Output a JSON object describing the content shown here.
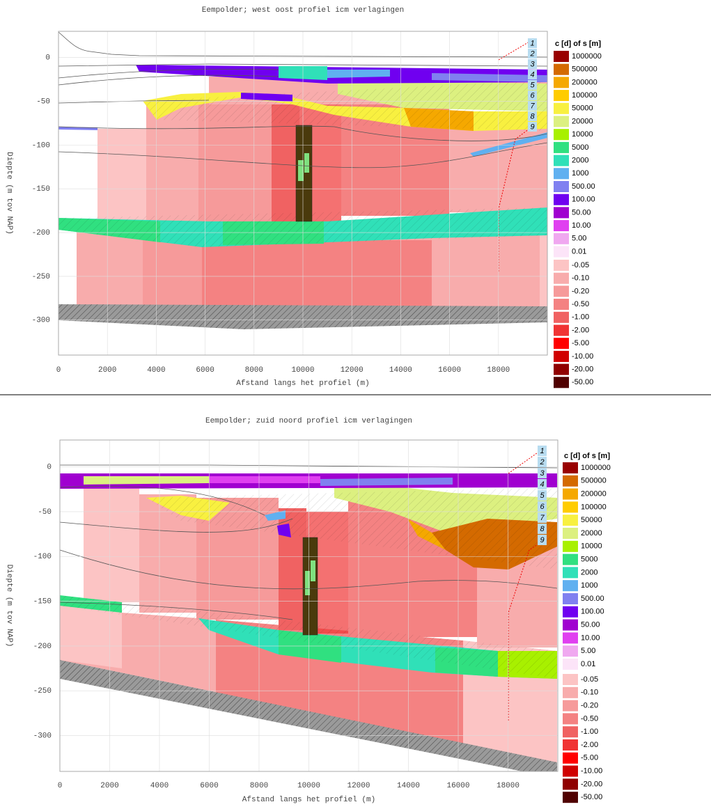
{
  "chart_data": [
    {
      "type": "cross-section",
      "title": "Eempolder; west oost profiel icm verlagingen",
      "xlabel": "Afstand langs het profiel (m)",
      "ylabel": "Diepte (m tov NAP)",
      "xlim": [
        0,
        20000
      ],
      "ylim": [
        -340,
        30
      ],
      "xticks": [
        0,
        2000,
        4000,
        6000,
        8000,
        10000,
        12000,
        14000,
        16000,
        18000
      ],
      "yticks": [
        0,
        -50,
        -100,
        -150,
        -200,
        -250,
        -300
      ],
      "grid": true,
      "layer_labels": [
        "1",
        "2",
        "3",
        "4",
        "5",
        "6",
        "7",
        "8",
        "9"
      ],
      "legend_title": "c [d] of s [m]",
      "legend": [
        {
          "label": "1000000",
          "color": "#990000"
        },
        {
          "label": "500000",
          "color": "#d46a00"
        },
        {
          "label": "200000",
          "color": "#f5a800"
        },
        {
          "label": "100000",
          "color": "#ffcc00"
        },
        {
          "label": "50000",
          "color": "#f8f040"
        },
        {
          "label": "20000",
          "color": "#dcf080"
        },
        {
          "label": "10000",
          "color": "#a8f000"
        },
        {
          "label": "5000",
          "color": "#30e080"
        },
        {
          "label": "2000",
          "color": "#30e0b8"
        },
        {
          "label": "1000",
          "color": "#60b0f0"
        },
        {
          "label": "500.00",
          "color": "#8080f0"
        },
        {
          "label": "100.00",
          "color": "#7000f0"
        },
        {
          "label": "50.00",
          "color": "#a000d0"
        },
        {
          "label": "10.00",
          "color": "#e040f0"
        },
        {
          "label": "5.00",
          "color": "#f0a8f0"
        },
        {
          "label": "0.01",
          "color": "#fce4f8"
        }
      ],
      "legend2": [
        {
          "label": "-0.05",
          "color": "#fcc4c4"
        },
        {
          "label": "-0.10",
          "color": "#f8acac"
        },
        {
          "label": "-0.20",
          "color": "#f69a9a"
        },
        {
          "label": "-0.50",
          "color": "#f48282"
        },
        {
          "label": "-1.00",
          "color": "#f06262"
        },
        {
          "label": "-2.00",
          "color": "#f03434"
        },
        {
          "label": "-5.00",
          "color": "#ff0000"
        },
        {
          "label": "-10.00",
          "color": "#d00000"
        },
        {
          "label": "-20.00",
          "color": "#900000"
        },
        {
          "label": "-50.00",
          "color": "#500000"
        }
      ]
    },
    {
      "type": "cross-section",
      "title": "Eempolder; zuid noord profiel icm verlagingen",
      "xlabel": "Afstand langs het profiel (m)",
      "ylabel": "Diepte (m tov NAP)",
      "xlim": [
        0,
        20000
      ],
      "ylim": [
        -340,
        30
      ],
      "xticks": [
        0,
        2000,
        4000,
        6000,
        8000,
        10000,
        12000,
        14000,
        16000,
        18000
      ],
      "yticks": [
        0,
        -50,
        -100,
        -150,
        -200,
        -250,
        -300
      ],
      "grid": true,
      "layer_labels": [
        "1",
        "2",
        "3",
        "4",
        "5",
        "6",
        "7",
        "8",
        "9"
      ],
      "legend_title": "c [d] of s [m]",
      "legend": [
        {
          "label": "1000000",
          "color": "#990000"
        },
        {
          "label": "500000",
          "color": "#d46a00"
        },
        {
          "label": "200000",
          "color": "#f5a800"
        },
        {
          "label": "100000",
          "color": "#ffcc00"
        },
        {
          "label": "50000",
          "color": "#f8f040"
        },
        {
          "label": "20000",
          "color": "#dcf080"
        },
        {
          "label": "10000",
          "color": "#a8f000"
        },
        {
          "label": "5000",
          "color": "#30e080"
        },
        {
          "label": "2000",
          "color": "#30e0b8"
        },
        {
          "label": "1000",
          "color": "#60b0f0"
        },
        {
          "label": "500.00",
          "color": "#8080f0"
        },
        {
          "label": "100.00",
          "color": "#7000f0"
        },
        {
          "label": "50.00",
          "color": "#a000d0"
        },
        {
          "label": "10.00",
          "color": "#e040f0"
        },
        {
          "label": "5.00",
          "color": "#f0a8f0"
        },
        {
          "label": "0.01",
          "color": "#fce4f8"
        }
      ],
      "legend2": [
        {
          "label": "-0.05",
          "color": "#fcc4c4"
        },
        {
          "label": "-0.10",
          "color": "#f8acac"
        },
        {
          "label": "-0.20",
          "color": "#f69a9a"
        },
        {
          "label": "-0.50",
          "color": "#f48282"
        },
        {
          "label": "-1.00",
          "color": "#f06262"
        },
        {
          "label": "-2.00",
          "color": "#f03434"
        },
        {
          "label": "-5.00",
          "color": "#ff0000"
        },
        {
          "label": "-10.00",
          "color": "#d00000"
        },
        {
          "label": "-20.00",
          "color": "#900000"
        },
        {
          "label": "-50.00",
          "color": "#500000"
        }
      ]
    }
  ]
}
